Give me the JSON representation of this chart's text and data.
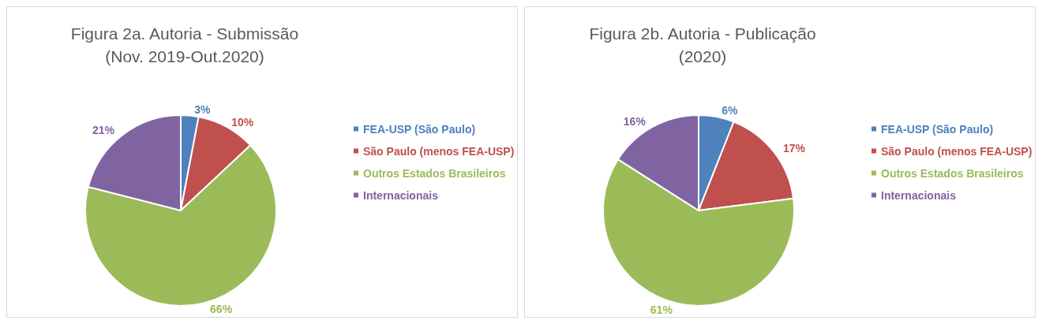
{
  "chart_data": [
    {
      "type": "pie",
      "title": "Figura 2a. Autoria - Submissão",
      "subtitle": "(Nov. 2019-Out.2020)",
      "categories": [
        "FEA-USP (São Paulo)",
        "São Paulo (menos FEA-USP)",
        "Outros Estados Brasileiros",
        "Internacionais"
      ],
      "values": [
        3,
        10,
        66,
        21
      ],
      "value_labels": [
        "3%",
        "10%",
        "66%",
        "21%"
      ],
      "colors": [
        "#4f81bd",
        "#c0504d",
        "#9bbb59",
        "#8064a2"
      ],
      "legend": "right"
    },
    {
      "type": "pie",
      "title": "Figura 2b. Autoria - Publicação",
      "subtitle": "(2020)",
      "categories": [
        "FEA-USP (São Paulo)",
        "São Paulo (menos FEA-USP)",
        "Outros Estados Brasileiros",
        "Internacionais"
      ],
      "values": [
        6,
        17,
        61,
        16
      ],
      "value_labels": [
        "6%",
        "17%",
        "61%",
        "16%"
      ],
      "colors": [
        "#4f81bd",
        "#c0504d",
        "#9bbb59",
        "#8064a2"
      ],
      "legend": "right"
    }
  ]
}
